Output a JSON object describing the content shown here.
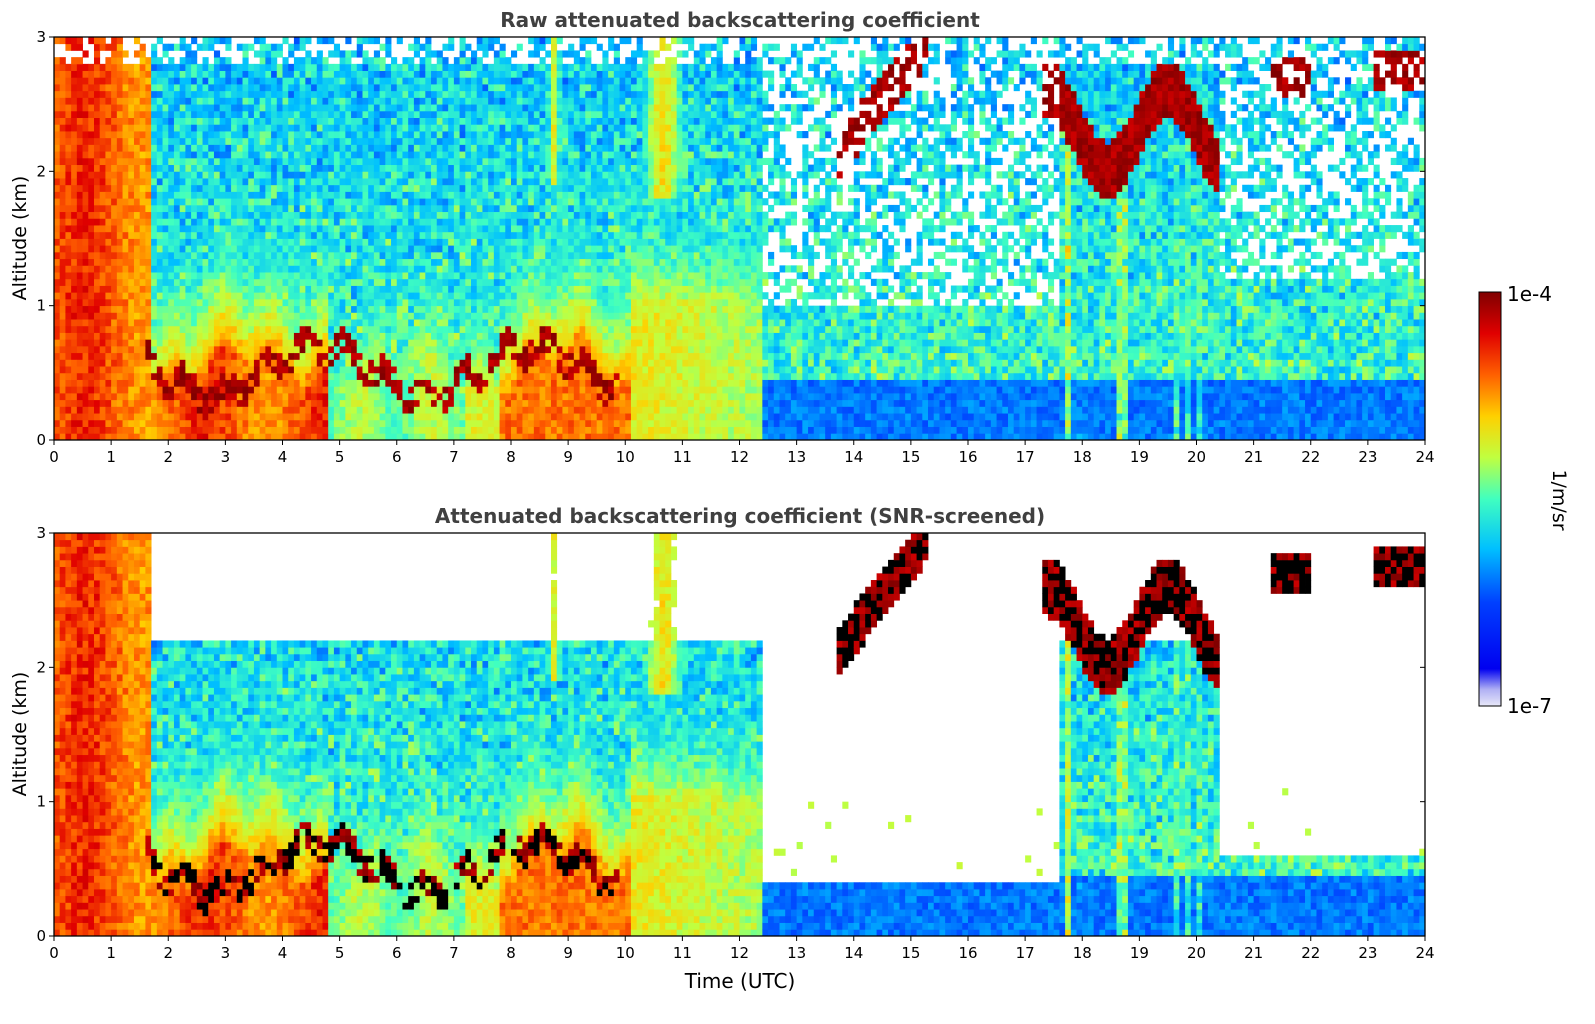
{
  "chart_data": [
    {
      "type": "heatmap",
      "title": "Raw attenuated backscattering coefficient",
      "xlabel": "",
      "ylabel": "Altitude (km)",
      "xlim": [
        0,
        24
      ],
      "ylim": [
        0,
        3
      ],
      "xticks": [
        "0",
        "1",
        "2",
        "3",
        "4",
        "5",
        "6",
        "7",
        "8",
        "9",
        "10",
        "11",
        "12",
        "13",
        "14",
        "15",
        "16",
        "17",
        "18",
        "19",
        "20",
        "21",
        "22",
        "23",
        "24"
      ],
      "yticks": [
        "0",
        "1",
        "2",
        "3"
      ],
      "screened": false,
      "grid": false
    },
    {
      "type": "heatmap",
      "title": "Attenuated backscattering coefficient (SNR-screened)",
      "xlabel": "Time (UTC)",
      "ylabel": "Altitude (km)",
      "xlim": [
        0,
        24
      ],
      "ylim": [
        0,
        3
      ],
      "xticks": [
        "0",
        "1",
        "2",
        "3",
        "4",
        "5",
        "6",
        "7",
        "8",
        "9",
        "10",
        "11",
        "12",
        "13",
        "14",
        "15",
        "16",
        "17",
        "18",
        "19",
        "20",
        "21",
        "22",
        "23",
        "24"
      ],
      "yticks": [
        "0",
        "1",
        "2",
        "3"
      ],
      "screened": true,
      "grid": false
    }
  ],
  "colorbar": {
    "label": "1/m/sr",
    "max_label": "1e-4",
    "min_label": "1e-7",
    "scale": "log",
    "range": [
      1e-07,
      0.0001
    ],
    "colormap": "jet",
    "placement": "right"
  }
}
